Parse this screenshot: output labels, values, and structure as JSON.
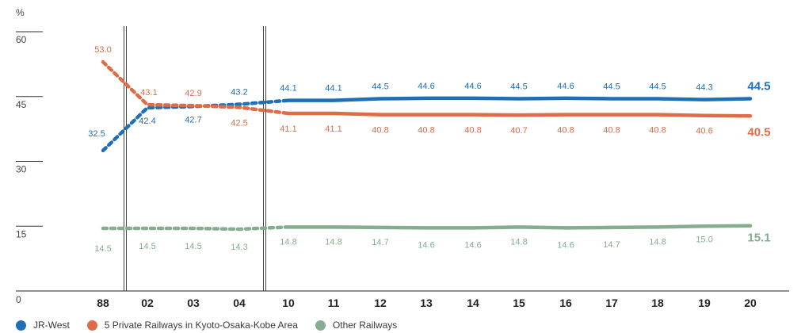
{
  "chart_data": {
    "type": "line",
    "ylabel": "%",
    "ylim": [
      0,
      60
    ],
    "yticks": [
      "0",
      "15",
      "30",
      "45",
      "60"
    ],
    "categories": [
      "88",
      "02",
      "03",
      "04",
      "10",
      "11",
      "12",
      "13",
      "14",
      "15",
      "16",
      "17",
      "18",
      "19",
      "20"
    ],
    "breaks_after": [
      "88",
      "04"
    ],
    "dashed_categories": [
      "88",
      "02",
      "03",
      "04"
    ],
    "series": [
      {
        "name": "JR-West",
        "color": "#1f6fb6",
        "values": [
          32.5,
          42.4,
          42.7,
          43.2,
          44.1,
          44.1,
          44.5,
          44.6,
          44.6,
          44.5,
          44.6,
          44.5,
          44.5,
          44.3,
          44.5
        ],
        "labels": [
          "32.5",
          "42.4",
          "42.7",
          "43.2",
          "44.1",
          "44.1",
          "44.5",
          "44.6",
          "44.6",
          "44.5",
          "44.6",
          "44.5",
          "44.5",
          "44.3",
          "44.5"
        ]
      },
      {
        "name": "5 Private Railways in Kyoto-Osaka-Kobe Area",
        "color": "#dd6c47",
        "values": [
          53.0,
          43.1,
          42.9,
          42.5,
          41.1,
          41.1,
          40.8,
          40.8,
          40.8,
          40.7,
          40.8,
          40.8,
          40.8,
          40.6,
          40.5
        ],
        "labels": [
          "53.0",
          "43.1",
          "42.9",
          "42.5",
          "41.1",
          "41.1",
          "40.8",
          "40.8",
          "40.8",
          "40.7",
          "40.8",
          "40.8",
          "40.8",
          "40.6",
          "40.5"
        ]
      },
      {
        "name": "Other Railways",
        "color": "#86ad8f",
        "values": [
          14.5,
          14.5,
          14.5,
          14.3,
          14.8,
          14.8,
          14.7,
          14.6,
          14.6,
          14.8,
          14.6,
          14.7,
          14.8,
          15.0,
          15.1
        ],
        "labels": [
          "14.5",
          "14.5",
          "14.5",
          "14.3",
          "14.8",
          "14.8",
          "14.7",
          "14.6",
          "14.6",
          "14.8",
          "14.6",
          "14.7",
          "14.8",
          "15.0",
          "15.1"
        ]
      }
    ],
    "legend_position": "bottom-left",
    "grid": false
  }
}
